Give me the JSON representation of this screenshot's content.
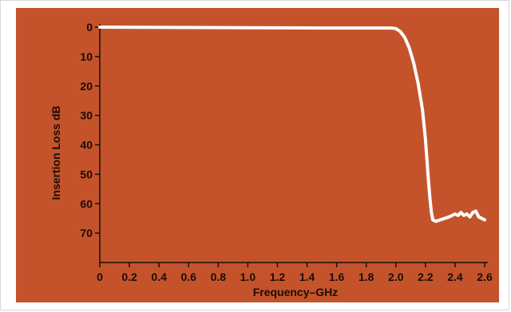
{
  "chart_data": {
    "type": "line",
    "title": "",
    "xlabel": "Frequency–GHz",
    "ylabel": "Insertion Loss dB",
    "xlim": [
      0,
      2.6
    ],
    "ylim": [
      0,
      80
    ],
    "y_inverted": true,
    "grid": false,
    "x_ticks": [
      0,
      0.2,
      0.4,
      0.6,
      0.8,
      1.0,
      1.2,
      1.4,
      1.6,
      1.8,
      2.0,
      2.2,
      2.4,
      2.6
    ],
    "x_tick_labels": [
      "0",
      "0.2",
      "0.4",
      "0.6",
      "0.8",
      "1.0",
      "1.2",
      "1.4",
      "1.6",
      "1.8",
      "2.0",
      "2.2",
      "2.4",
      "2.6"
    ],
    "y_ticks": [
      0,
      10,
      20,
      30,
      40,
      50,
      60,
      70
    ],
    "y_tick_labels": [
      "0",
      "10",
      "20",
      "30",
      "40",
      "50",
      "60",
      "70"
    ],
    "series": [
      {
        "color": "#ffffff",
        "x": [
          0.0,
          0.5,
          1.0,
          1.5,
          1.9,
          1.97,
          2.0,
          2.03,
          2.06,
          2.09,
          2.12,
          2.15,
          2.18,
          2.2,
          2.21,
          2.22,
          2.23,
          2.24,
          2.25,
          2.27,
          2.3,
          2.33,
          2.36,
          2.38,
          2.4,
          2.42,
          2.44,
          2.46,
          2.48,
          2.5,
          2.52,
          2.54,
          2.56,
          2.58,
          2.6
        ],
        "y": [
          0.0,
          0.1,
          0.2,
          0.3,
          0.3,
          0.3,
          0.5,
          1.5,
          3.5,
          7.0,
          12.0,
          19.0,
          28.0,
          38.0,
          45.0,
          52.0,
          58.0,
          63.0,
          65.5,
          66.0,
          65.5,
          65.0,
          64.5,
          64.0,
          63.5,
          64.0,
          63.0,
          64.0,
          63.5,
          64.5,
          63.0,
          62.5,
          64.5,
          65.0,
          65.5
        ]
      }
    ]
  }
}
